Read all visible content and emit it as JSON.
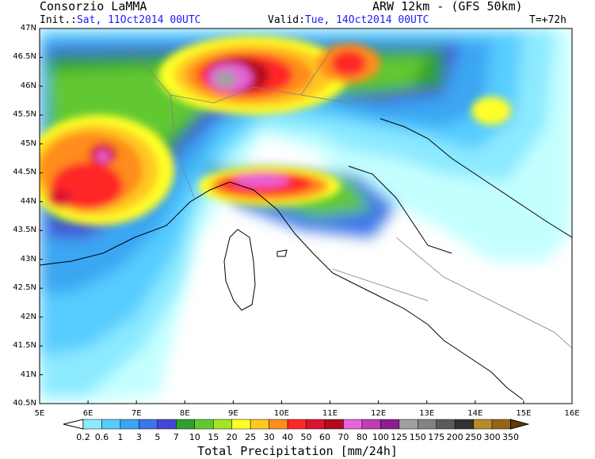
{
  "header": {
    "org": "Consorzio LaMMA",
    "model": "ARW 12km - (GFS 50km)",
    "init_label": "Init.:",
    "init_value": "Sat, 11Oct2014 00UTC",
    "valid_label": "Valid:",
    "valid_value": "Tue, 14Oct2014 00UTC",
    "lead": "T=+72h"
  },
  "map": {
    "lat_labels": [
      "47N",
      "46.5N",
      "46N",
      "45.5N",
      "45N",
      "44.5N",
      "44N",
      "43.5N",
      "43N",
      "42.5N",
      "42N",
      "41.5N",
      "41N",
      "40.5N"
    ],
    "lon_labels": [
      "5E",
      "6E",
      "7E",
      "8E",
      "9E",
      "10E",
      "11E",
      "12E",
      "13E",
      "14E",
      "15E",
      "16E"
    ],
    "lat_range": [
      40.5,
      47
    ],
    "lon_range": [
      5,
      16
    ],
    "land_color": "#ffffff"
  },
  "colorbar": {
    "title": "Total Precipitation [mm/24h]",
    "labels": [
      "0.2",
      "0.6",
      "1",
      "3",
      "5",
      "7",
      "10",
      "15",
      "20",
      "25",
      "30",
      "40",
      "50",
      "60",
      "70",
      "80",
      "100",
      "125",
      "150",
      "175",
      "200",
      "250",
      "300",
      "350"
    ],
    "colors": [
      "#c4ffff",
      "#8ceaff",
      "#56ccff",
      "#3aa6f2",
      "#3c76e8",
      "#4646d6",
      "#2da02d",
      "#62c830",
      "#a4e428",
      "#ffff28",
      "#ffc820",
      "#ff8c1e",
      "#ff2828",
      "#dc1432",
      "#b40a1e",
      "#e664dc",
      "#be3cb4",
      "#8c1e8c",
      "#a0a0a0",
      "#828282",
      "#5a5a5a",
      "#323232",
      "#b48c28",
      "#966414",
      "#643c0a"
    ]
  }
}
